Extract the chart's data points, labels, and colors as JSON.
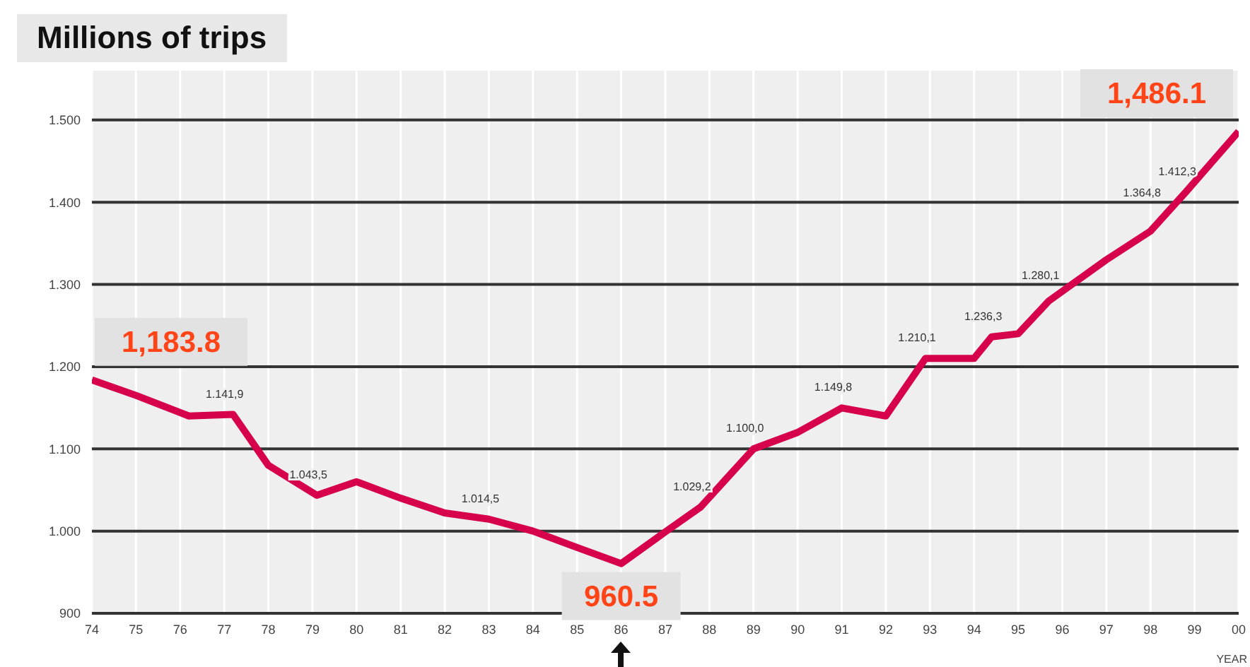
{
  "chart_data": {
    "type": "line",
    "title": "Millions of trips",
    "xlabel": "YEAR",
    "x": [
      1974,
      1975,
      1976.2,
      1977.2,
      1978,
      1979.1,
      1980,
      1981,
      1982,
      1983,
      1984,
      1985,
      1986,
      1987,
      1987.8,
      1989,
      1990,
      1991,
      1992,
      1992.9,
      1994,
      1994.4,
      1995,
      1995.7,
      1997,
      1998,
      1998.8,
      2000
    ],
    "series": [
      {
        "color": "#d6004c",
        "values": [
          1183.8,
          1165,
          1140,
          1141.9,
          1080,
          1043.5,
          1060,
          1040,
          1022,
          1014.5,
          1000,
          980,
          960.5,
          999,
          1029.2,
          1100.0,
          1120,
          1149.8,
          1140,
          1210.1,
          1210,
          1236.3,
          1240,
          1280.1,
          1330,
          1364.8,
          1412.3,
          1486.1
        ],
        "value_labels": [
          null,
          null,
          null,
          "1.141,9",
          null,
          "1.043,5",
          null,
          null,
          null,
          "1.014,5",
          null,
          null,
          null,
          null,
          "1.029,2",
          "1.100,0",
          null,
          "1.149,8",
          null,
          "1.210,1",
          null,
          "1.236,3",
          null,
          "1.280,1",
          null,
          "1.364,8",
          "1.412,3",
          null
        ]
      }
    ],
    "annotations": [
      {
        "text": "1,183.8",
        "x": 1974,
        "y": 1183.8
      },
      {
        "text": "960.5",
        "x": 1986,
        "y": 960.5
      },
      {
        "text": "1,486.1",
        "x": 2000,
        "y": 1486.1
      }
    ],
    "xlim": [
      1974,
      2000
    ],
    "xticks": [
      {
        "value": 1974,
        "label": "74"
      },
      {
        "value": 1975,
        "label": "75"
      },
      {
        "value": 1976,
        "label": "76"
      },
      {
        "value": 1977,
        "label": "77"
      },
      {
        "value": 1978,
        "label": "78"
      },
      {
        "value": 1979,
        "label": "79"
      },
      {
        "value": 1980,
        "label": "80"
      },
      {
        "value": 1981,
        "label": "81"
      },
      {
        "value": 1982,
        "label": "82"
      },
      {
        "value": 1983,
        "label": "83"
      },
      {
        "value": 1984,
        "label": "84"
      },
      {
        "value": 1985,
        "label": "85"
      },
      {
        "value": 1986,
        "label": "86"
      },
      {
        "value": 1987,
        "label": "87"
      },
      {
        "value": 1988,
        "label": "88"
      },
      {
        "value": 1989,
        "label": "89"
      },
      {
        "value": 1990,
        "label": "90"
      },
      {
        "value": 1991,
        "label": "91"
      },
      {
        "value": 1992,
        "label": "92"
      },
      {
        "value": 1993,
        "label": "93"
      },
      {
        "value": 1994,
        "label": "94"
      },
      {
        "value": 1995,
        "label": "95"
      },
      {
        "value": 1996,
        "label": "96"
      },
      {
        "value": 1997,
        "label": "97"
      },
      {
        "value": 1998,
        "label": "98"
      },
      {
        "value": 1999,
        "label": "99"
      },
      {
        "value": 2000,
        "label": "00"
      }
    ],
    "ylim": [
      900,
      1560
    ],
    "yticks": [
      900,
      {
        "value": 1000,
        "label": "1.000"
      },
      {
        "value": 1100,
        "label": "1.100"
      },
      {
        "value": 1200,
        "label": "1.200"
      },
      {
        "value": 1300,
        "label": "1.300"
      },
      {
        "value": 1400,
        "label": "1.400"
      },
      {
        "value": 1500,
        "label": "1.500"
      }
    ],
    "grid": true,
    "marker": "none",
    "line_style": "solid"
  }
}
